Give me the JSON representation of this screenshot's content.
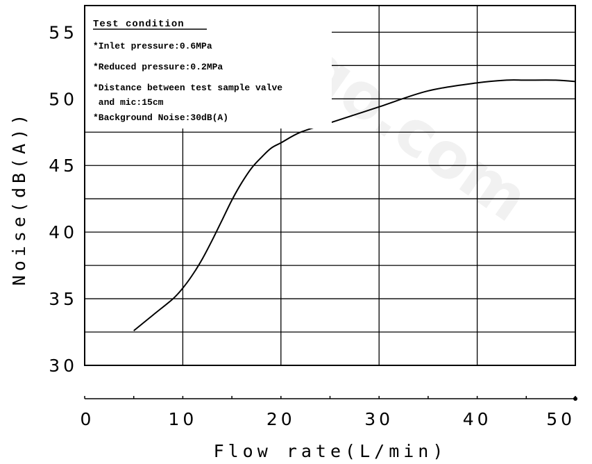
{
  "chart_data": {
    "type": "line",
    "xlabel": "Flow rate(L/min)",
    "ylabel": "Noise(dB(A))",
    "xlim": [
      0,
      50
    ],
    "ylim": [
      30,
      57
    ],
    "x_ticks": [
      0,
      10,
      20,
      30,
      40,
      50
    ],
    "y_ticks": [
      30,
      35,
      40,
      45,
      50,
      55
    ],
    "grid": true,
    "series": [
      {
        "x": [
          5,
          7,
          9,
          10,
          11,
          12,
          13,
          14,
          15,
          16,
          17,
          18,
          19,
          20,
          22,
          25,
          30,
          35,
          40,
          43,
          45,
          48,
          50
        ],
        "y": [
          32.6,
          33.8,
          35.0,
          35.8,
          36.8,
          38.0,
          39.4,
          40.9,
          42.4,
          43.7,
          44.8,
          45.6,
          46.3,
          46.7,
          47.5,
          48.2,
          49.4,
          50.6,
          51.2,
          51.4,
          51.4,
          51.4,
          51.3
        ]
      }
    ],
    "annotation": {
      "title": "Test condition",
      "lines": [
        "*Inlet pressure:0.6MPa",
        "*Reduced pressure:0.2MPa",
        "*Distance between test sample valve",
        " and mic:15cm",
        "*Background Noise:30dB(A)"
      ]
    }
  },
  "watermark": "go.com"
}
